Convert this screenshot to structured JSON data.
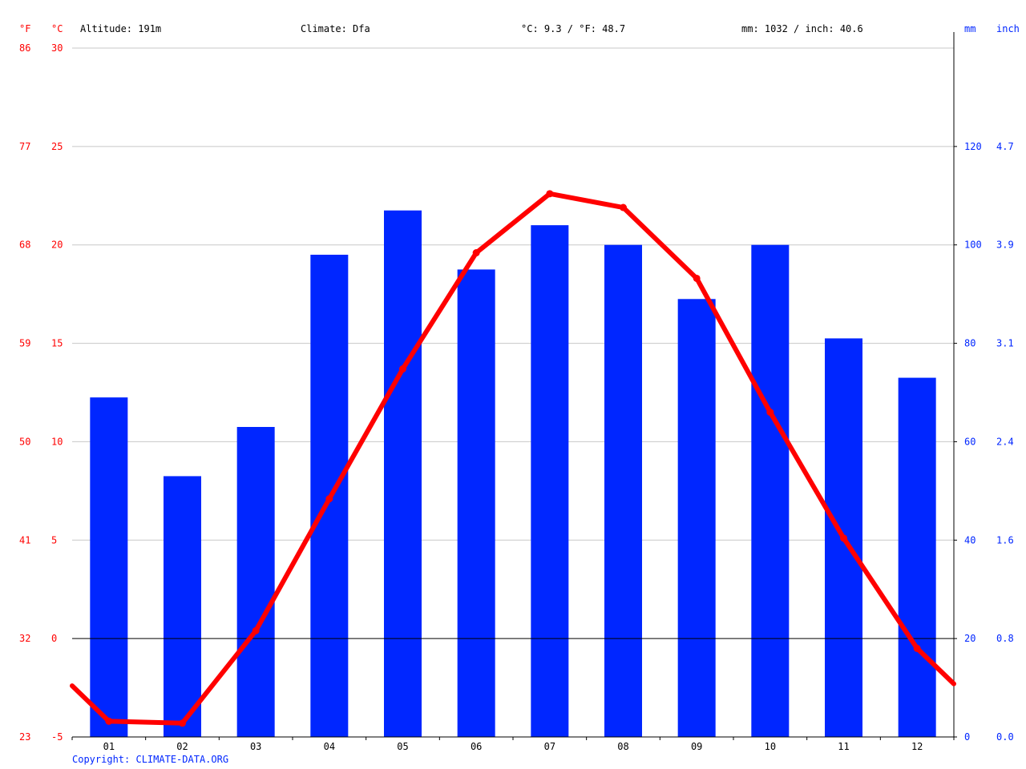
{
  "header": {
    "altitude": "Altitude: 191m",
    "climate": "Climate: Dfa",
    "avg_temp": "°C: 9.3 / °F: 48.7",
    "precip_total": "mm: 1032 / inch: 40.6"
  },
  "axis_units": {
    "fahrenheit": "°F",
    "celsius": "°C",
    "mm": "mm",
    "inch": "inch"
  },
  "copyright": "Copyright: CLIMATE-DATA.ORG",
  "colors": {
    "precip": "#0026ff",
    "temp": "#ff0000",
    "grid": "#c8c8c8",
    "zero_line": "#000000",
    "precip_axis": "#0026ff",
    "temp_axis": "#ff0000"
  },
  "chart_data": {
    "type": "bar",
    "categories": [
      "01",
      "02",
      "03",
      "04",
      "05",
      "06",
      "07",
      "08",
      "09",
      "10",
      "11",
      "12"
    ],
    "series": [
      {
        "name": "",
        "type": "bar",
        "axis": "right",
        "values": [
          69,
          53,
          63,
          98,
          107,
          95,
          104,
          100,
          89,
          100,
          81,
          73
        ]
      },
      {
        "name": "",
        "type": "line",
        "axis": "left",
        "values": [
          -4.2,
          -4.3,
          0.4,
          7.1,
          13.7,
          19.6,
          22.6,
          21.9,
          18.3,
          11.5,
          5.1,
          -0.5
        ],
        "start_value": -2.4,
        "end_value": -2.3
      }
    ],
    "y_left": {
      "range": [
        -5,
        30
      ],
      "ticks_c": [
        -5,
        0,
        5,
        10,
        15,
        20,
        25,
        30
      ],
      "ticks_f": [
        "23",
        "32",
        "41",
        "50",
        "59",
        "68",
        "77",
        "86"
      ]
    },
    "y_right": {
      "range": [
        0,
        140
      ],
      "ticks_mm": [
        "0",
        "20",
        "40",
        "60",
        "80",
        "100",
        "120"
      ],
      "ticks_inch": [
        "0.0",
        "0.8",
        "1.6",
        "2.4",
        "3.1",
        "3.9",
        "4.7"
      ]
    },
    "grid": true
  }
}
